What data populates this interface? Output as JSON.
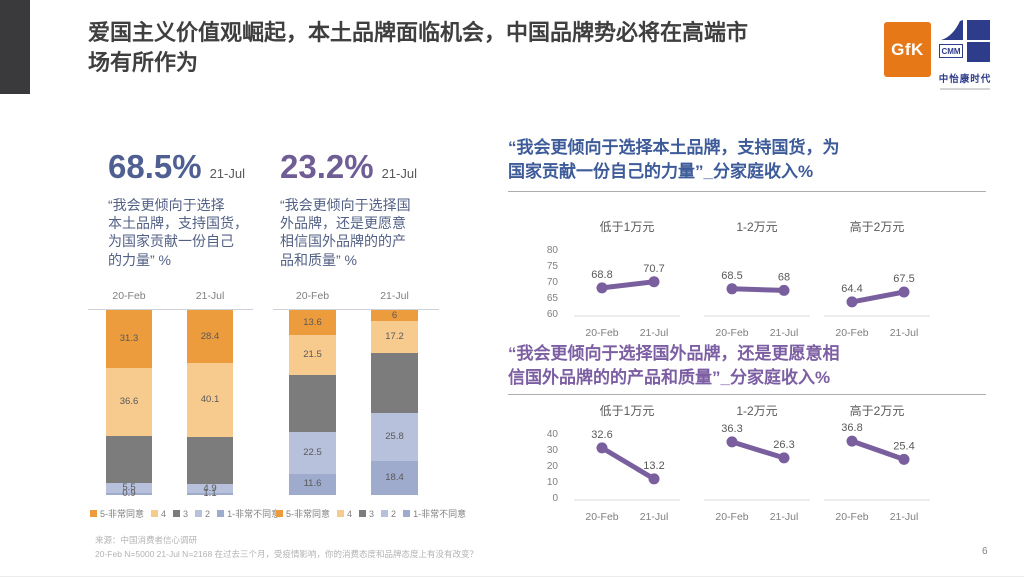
{
  "slide": {
    "title": "爱国主义价值观崛起，本土品牌面临机会，中国品牌势必将在高端市\n场有所作为",
    "page_number": "6",
    "source": {
      "line1": "来源：中国消费者信心调研",
      "line2": "20-Feb N=5000 21-Jul N=2168  在过去三个月，受疫情影响，你的消费态度和品牌态度上有没有改变？"
    }
  },
  "logos": {
    "gfk_text": "GfK",
    "cmm_text": "CMM",
    "cmm_name": "中怡康时代"
  },
  "colors": {
    "title": "#3F3F3F",
    "headline_blue": "#4F5F92",
    "headline_purple": "#6F5E95",
    "question_text": "#536085",
    "right_title_blue": "#3D5B99",
    "right_title_purple": "#7C5EA2",
    "line": "#7A5F9F",
    "agree5": "#EC9C3D",
    "agree4": "#F7CA8E",
    "neutral3": "#7C7C7C",
    "disagree2": "#B7C1DB",
    "disagree1": "#9EABCC",
    "gfk_orange": "#E67817",
    "cmm_blue": "#2E3C8C"
  },
  "left": {
    "stat1": {
      "value": "68.5%",
      "period": "21-Jul",
      "question": "“我会更倾向于选择\n本土品牌，支持国货，\n为国家贡献一份自己\n的力量” %"
    },
    "stat2": {
      "value": "23.2%",
      "period": "21-Jul",
      "question": "“我会更倾向于选择国\n外品牌，还是更愿意\n相信国外品牌的的产\n品和质量” %"
    }
  },
  "right": {
    "title1": "“我会更倾向于选择本土品牌，支持国货，为\n国家贡献一份自己的力量”_分家庭收入%",
    "title2": "“我会更倾向于选择国外品牌，还是更愿意相\n信国外品牌的的产品和质量”_分家庭收入%"
  },
  "legend": {
    "items": [
      {
        "color": "agree5",
        "label": "5-非常同意"
      },
      {
        "color": "agree4",
        "label": "4"
      },
      {
        "color": "neutral3",
        "label": "3"
      },
      {
        "color": "disagree2",
        "label": "2"
      },
      {
        "color": "disagree1",
        "label": "1-非常不同意"
      }
    ]
  },
  "chart_data": [
    {
      "type": "bar",
      "variant": "stacked-100",
      "title": "“我会更倾向于选择本土品牌，支持国货，为国家贡献一份自己的力量” %",
      "categories": [
        "20-Feb",
        "21-Jul"
      ],
      "series": [
        {
          "name": "5-非常同意",
          "color": "agree5",
          "values": [
            31.3,
            28.4
          ],
          "labels": [
            "31.3",
            "28.4"
          ]
        },
        {
          "name": "4",
          "color": "agree4",
          "values": [
            36.6,
            40.1
          ],
          "labels": [
            "36.6",
            "40.1"
          ]
        },
        {
          "name": "3",
          "color": "neutral3",
          "values": [
            25.7,
            25.5
          ],
          "labels": [
            null,
            null
          ]
        },
        {
          "name": "2",
          "color": "disagree2",
          "values": [
            5.5,
            4.9
          ],
          "labels": [
            "5.5",
            "4.9"
          ]
        },
        {
          "name": "1-非常不同意",
          "color": "disagree1",
          "values": [
            0.9,
            1.1
          ],
          "labels": [
            "0.9",
            "1.1"
          ]
        }
      ]
    },
    {
      "type": "bar",
      "variant": "stacked-100",
      "title": "“我会更倾向于选择国外品牌，还是更愿意相信国外品牌的的产品和质量” %",
      "categories": [
        "20-Feb",
        "21-Jul"
      ],
      "series": [
        {
          "name": "5-非常同意",
          "color": "agree5",
          "values": [
            13.6,
            6
          ],
          "labels": [
            "13.6",
            "6"
          ]
        },
        {
          "name": "4",
          "color": "agree4",
          "values": [
            21.5,
            17.2
          ],
          "labels": [
            "21.5",
            "17.2"
          ]
        },
        {
          "name": "3",
          "color": "neutral3",
          "values": [
            30.8,
            32.6
          ],
          "labels": [
            null,
            null
          ]
        },
        {
          "name": "2",
          "color": "disagree2",
          "values": [
            22.5,
            25.8
          ],
          "labels": [
            "22.5",
            "25.8"
          ]
        },
        {
          "name": "1-非常不同意",
          "color": "disagree1",
          "values": [
            11.6,
            18.4
          ],
          "labels": [
            "11.6",
            "18.4"
          ]
        }
      ]
    },
    {
      "type": "line",
      "title": "“我会更倾向于选择本土品牌，支持国货，为国家贡献一份自己的力量”_分家庭收入%",
      "x": [
        "20-Feb",
        "21-Jul"
      ],
      "ylim": [
        60,
        80
      ],
      "yticks": [
        80,
        75,
        70,
        65,
        60
      ],
      "subcharts": [
        {
          "title": "低于1万元",
          "values": [
            68.8,
            70.7
          ],
          "labels": [
            "68.8",
            "70.7"
          ]
        },
        {
          "title": "1-2万元",
          "values": [
            68.5,
            68
          ],
          "labels": [
            "68.5",
            "68"
          ]
        },
        {
          "title": "高于2万元",
          "values": [
            64.4,
            67.5
          ],
          "labels": [
            "64.4",
            "67.5"
          ]
        }
      ]
    },
    {
      "type": "line",
      "title": "“我会更倾向于选择国外品牌，还是更愿意相信国外品牌的的产品和质量”_分家庭收入%",
      "x": [
        "20-Feb",
        "21-Jul"
      ],
      "ylim": [
        0,
        40
      ],
      "yticks": [
        40,
        30,
        20,
        10,
        0
      ],
      "subcharts": [
        {
          "title": "低于1万元",
          "values": [
            32.6,
            13.2
          ],
          "labels": [
            "32.6",
            "13.2"
          ]
        },
        {
          "title": "1-2万元",
          "values": [
            36.3,
            26.3
          ],
          "labels": [
            "36.3",
            "26.3"
          ]
        },
        {
          "title": "高于2万元",
          "values": [
            36.8,
            25.4
          ],
          "labels": [
            "36.8",
            "25.4"
          ]
        }
      ]
    }
  ]
}
